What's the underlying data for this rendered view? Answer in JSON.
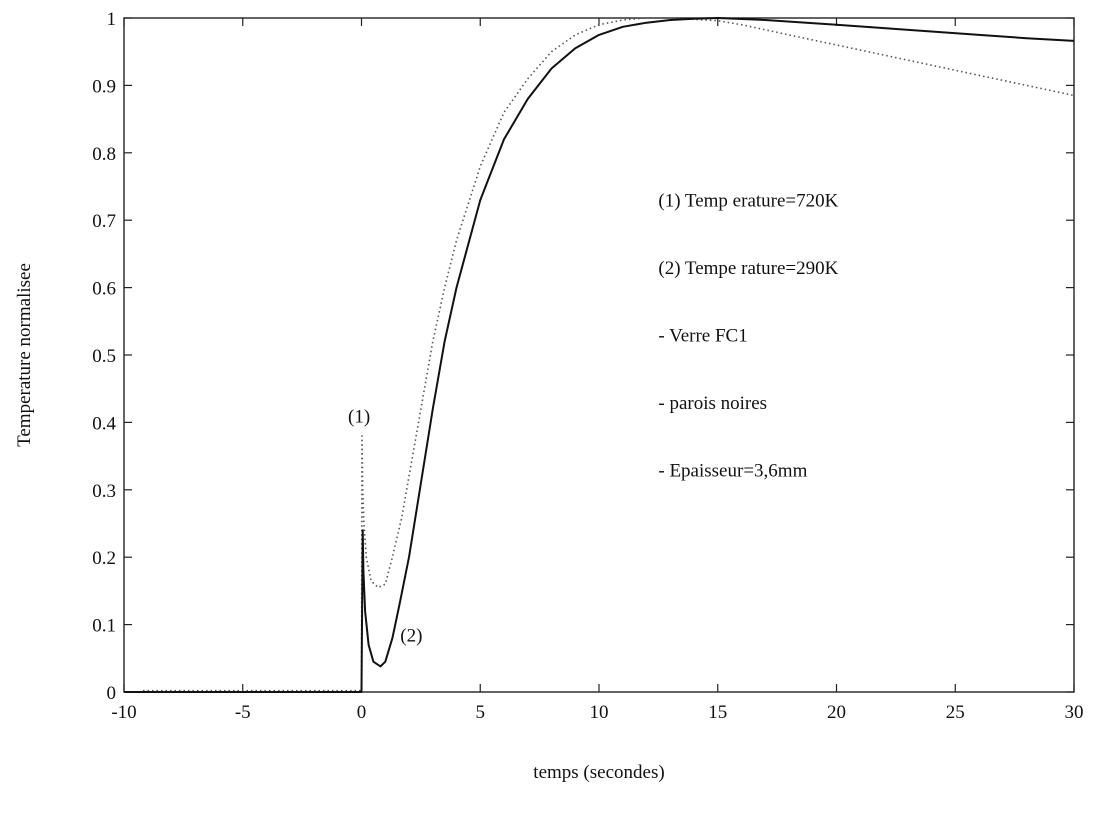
{
  "chart_data": {
    "type": "line",
    "title": "",
    "xlabel": "temps (secondes)",
    "ylabel": "Temperature normalisee",
    "xlim": [
      -10,
      30
    ],
    "ylim": [
      0,
      1
    ],
    "xticks": [
      -10,
      -5,
      0,
      5,
      10,
      15,
      20,
      25,
      30
    ],
    "yticks": [
      0,
      0.1,
      0.2,
      0.3,
      0.4,
      0.5,
      0.6,
      0.7,
      0.8,
      0.9,
      1
    ],
    "ytick_labels": [
      "0",
      "0.1",
      "0.2",
      "0.3",
      "0.4",
      "0.5",
      "0.6",
      "0.7",
      "0.8",
      "0.9",
      "1"
    ],
    "grid": false,
    "series": [
      {
        "label": "(1)",
        "style": "dotted",
        "color": "#555555",
        "x": [
          -9.2,
          -5,
          -1,
          0,
          0.02,
          0.05,
          0.1,
          0.2,
          0.4,
          0.7,
          1.0,
          1.3,
          1.7,
          2,
          2.5,
          3,
          3.5,
          4,
          5,
          6,
          7,
          8,
          9,
          10,
          11,
          12,
          13,
          14,
          15,
          16,
          18,
          20,
          22,
          24,
          26,
          28,
          30
        ],
        "y": [
          0.002,
          0.002,
          0.002,
          0.002,
          0.38,
          0.3,
          0.25,
          0.2,
          0.165,
          0.155,
          0.16,
          0.2,
          0.26,
          0.32,
          0.42,
          0.52,
          0.6,
          0.67,
          0.78,
          0.86,
          0.91,
          0.95,
          0.975,
          0.99,
          0.997,
          1.0,
          1.0,
          0.998,
          0.996,
          0.99,
          0.975,
          0.96,
          0.945,
          0.93,
          0.915,
          0.9,
          0.885
        ]
      },
      {
        "label": "(2)",
        "style": "solid",
        "color": "#111111",
        "x": [
          -10,
          -5,
          -1,
          0,
          0.05,
          0.08,
          0.15,
          0.3,
          0.5,
          0.8,
          1.0,
          1.3,
          1.6,
          2,
          2.5,
          3,
          3.5,
          4,
          5,
          6,
          7,
          8,
          9,
          10,
          11,
          12,
          13,
          14,
          15,
          17,
          20,
          22,
          24,
          26,
          28,
          30
        ],
        "y": [
          0,
          0,
          0,
          0,
          0.24,
          0.18,
          0.12,
          0.07,
          0.045,
          0.038,
          0.045,
          0.08,
          0.13,
          0.2,
          0.31,
          0.42,
          0.52,
          0.6,
          0.73,
          0.82,
          0.88,
          0.925,
          0.955,
          0.975,
          0.987,
          0.993,
          0.997,
          0.999,
          1.0,
          0.997,
          0.99,
          0.985,
          0.98,
          0.975,
          0.97,
          0.966
        ]
      }
    ],
    "curve_labels": [
      {
        "text": "(1)",
        "x": -0.1,
        "y": 0.4
      },
      {
        "text": "(2)",
        "x": 2.1,
        "y": 0.075
      }
    ],
    "annotations": [
      {
        "text": "(1) Temp erature=720K",
        "x": 12.5,
        "y": 0.72
      },
      {
        "text": "(2) Tempe rature=290K",
        "x": 12.5,
        "y": 0.62
      },
      {
        "text": "- Verre FC1",
        "x": 12.5,
        "y": 0.52
      },
      {
        "text": "- parois noires",
        "x": 12.5,
        "y": 0.42
      },
      {
        "text": "- Epaisseur=3,6mm",
        "x": 12.5,
        "y": 0.32
      }
    ]
  }
}
